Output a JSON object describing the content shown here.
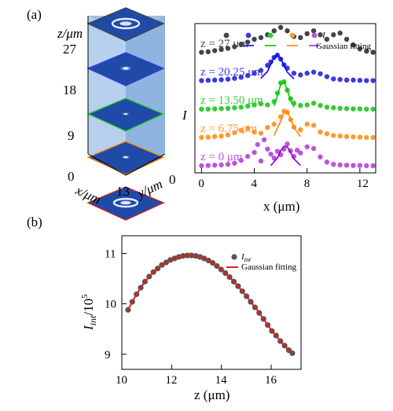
{
  "figure": {
    "panel_a_label": "(a)",
    "panel_b_label": "(b)",
    "stack": {
      "z_axis_label": "z/μm",
      "x_axis_label": "x/μm",
      "y_axis_label": "y/μm",
      "z_ticks": [
        "27",
        "18",
        "9",
        "0"
      ],
      "x_end_tick": "13",
      "y_end_tick": "0",
      "slice_border_colors": [
        "#444444",
        "#3a3ae0",
        "#33cc33",
        "#ff8800",
        "#cc2020"
      ]
    }
  },
  "chart_data": [
    {
      "type": "line",
      "panel": "(a)",
      "title": "",
      "xlabel": "x (μm)",
      "ylabel": "I",
      "xlim": [
        -0.5,
        13.2
      ],
      "xticks": [
        "0",
        "4",
        "8",
        "12"
      ],
      "grid": false,
      "legend": {
        "placement": "top-right",
        "entries": [
          "I",
          "Gaussian fitting"
        ],
        "marker_colors": [
          "#444444",
          "#3a3ae0",
          "#33cc33",
          "#ff9933",
          "#bb55dd"
        ]
      },
      "series": [
        {
          "name": "z = 27 μm",
          "color": "#444444",
          "fit_color": "#444444",
          "offset": 4,
          "x": [
            0,
            0.5,
            1,
            1.5,
            2,
            2.5,
            3,
            3.5,
            4,
            4.5,
            5,
            5.5,
            6,
            6.5,
            7,
            7.5,
            8,
            8.5,
            9,
            9.5,
            10,
            10.5,
            11,
            11.5,
            12,
            12.5,
            13
          ],
          "y": [
            0.04,
            0.06,
            0.1,
            0.14,
            0.18,
            0.24,
            0.32,
            0.4,
            0.5,
            0.56,
            0.66,
            0.8,
            0.92,
            0.8,
            0.6,
            0.56,
            0.7,
            0.8,
            0.66,
            0.5,
            0.66,
            0.72,
            0.5,
            0.3,
            0.16,
            0.08,
            0.04
          ],
          "fit_x": [],
          "fit_y": []
        },
        {
          "name": "z = 20.25 μm",
          "color": "#3a3ae0",
          "fit_color": "#0000ff",
          "offset": 3,
          "x": [
            0,
            0.5,
            1,
            1.5,
            2,
            2.5,
            3,
            3.5,
            4,
            4.5,
            5,
            5.25,
            5.5,
            5.75,
            6,
            6.25,
            6.5,
            7,
            7.5,
            8,
            8.5,
            9,
            9.5,
            10,
            10.5,
            11,
            11.5,
            12,
            12.5,
            13
          ],
          "y": [
            0.04,
            0.05,
            0.06,
            0.07,
            0.09,
            0.12,
            0.16,
            0.22,
            0.3,
            0.4,
            0.58,
            0.7,
            0.86,
            0.94,
            0.8,
            0.6,
            0.48,
            0.3,
            0.24,
            0.3,
            0.34,
            0.28,
            0.18,
            0.1,
            0.08,
            0.06,
            0.06,
            0.05,
            0.04,
            0.04
          ],
          "fit_x": [
            4.5,
            5,
            5.25,
            5.5,
            5.75,
            6,
            6.25,
            6.5,
            7
          ],
          "fit_y": [
            0.12,
            0.36,
            0.62,
            0.86,
            0.94,
            0.82,
            0.58,
            0.34,
            0.1
          ]
        },
        {
          "name": "z = 13.50 μm",
          "color": "#33cc33",
          "fit_color": "#00cc00",
          "offset": 2,
          "x": [
            0,
            0.5,
            1,
            1.5,
            2,
            2.5,
            3,
            3.5,
            4,
            4.5,
            5,
            5.5,
            5.75,
            6,
            6.25,
            6.5,
            6.75,
            7,
            7.5,
            8,
            8.5,
            9,
            9.5,
            10,
            10.5,
            11,
            11.5,
            12,
            12.5,
            13
          ],
          "y": [
            0.03,
            0.03,
            0.04,
            0.05,
            0.06,
            0.08,
            0.1,
            0.14,
            0.18,
            0.22,
            0.18,
            0.3,
            0.6,
            0.96,
            1.0,
            0.7,
            0.4,
            0.24,
            0.16,
            0.18,
            0.24,
            0.16,
            0.1,
            0.08,
            0.06,
            0.05,
            0.04,
            0.04,
            0.03,
            0.03
          ],
          "fit_x": [
            5.5,
            5.75,
            6,
            6.25,
            6.5,
            6.75,
            7
          ],
          "fit_y": [
            0.15,
            0.5,
            0.9,
            1.0,
            0.72,
            0.34,
            0.1
          ]
        },
        {
          "name": "z = 6.75 μm",
          "color": "#ff9933",
          "fit_color": "#ff8800",
          "offset": 1,
          "x": [
            0,
            0.5,
            1,
            1.5,
            2,
            2.5,
            3,
            3.5,
            4,
            4.5,
            5,
            5.5,
            6,
            6.25,
            6.5,
            6.75,
            7,
            7.5,
            8,
            8.5,
            9,
            9.5,
            10,
            10.5,
            11,
            11.5,
            12,
            12.5,
            13
          ],
          "y": [
            0.03,
            0.04,
            0.06,
            0.08,
            0.12,
            0.2,
            0.28,
            0.36,
            0.22,
            0.18,
            0.38,
            0.5,
            0.76,
            0.96,
            0.92,
            0.66,
            0.4,
            0.3,
            0.5,
            0.46,
            0.22,
            0.16,
            0.1,
            0.08,
            0.06,
            0.05,
            0.04,
            0.03,
            0.03
          ],
          "fit_x": [
            5.5,
            6,
            6.25,
            6.5,
            6.75,
            7,
            7.5
          ],
          "fit_y": [
            0.1,
            0.6,
            0.92,
            0.94,
            0.7,
            0.38,
            0.06
          ]
        },
        {
          "name": "z = 0 μm",
          "color": "#bb55dd",
          "fit_color": "#8800cc",
          "offset": 0,
          "x": [
            0,
            0.5,
            1,
            1.5,
            2,
            2.5,
            3,
            3.5,
            4,
            4.25,
            4.5,
            4.75,
            5,
            5.25,
            5.5,
            5.75,
            6,
            6.25,
            6.5,
            6.75,
            7,
            7.25,
            7.5,
            8,
            8.5,
            9,
            9.5,
            10,
            10.5,
            11,
            11.5,
            12,
            12.5,
            13
          ],
          "y": [
            0.03,
            0.04,
            0.05,
            0.06,
            0.08,
            0.12,
            0.22,
            0.36,
            0.5,
            0.78,
            0.2,
            0.95,
            0.62,
            0.44,
            0.3,
            0.54,
            0.42,
            0.62,
            0.8,
            0.56,
            0.36,
            0.58,
            0.48,
            0.7,
            0.64,
            0.34,
            0.16,
            0.08,
            0.06,
            0.05,
            0.04,
            0.04,
            0.03,
            0.03
          ],
          "fit_x": [
            5.25,
            5.75,
            6,
            6.25,
            6.5,
            6.75,
            7,
            7.5
          ],
          "fit_y": [
            0.04,
            0.3,
            0.56,
            0.72,
            0.7,
            0.5,
            0.28,
            0.04
          ]
        }
      ]
    },
    {
      "type": "scatter",
      "panel": "(b)",
      "title": "",
      "xlabel": "z (μm)",
      "ylabel": "I_int/10^5",
      "ylabel_parts": {
        "symbol": "I",
        "subscript": "int",
        "divider": "/10",
        "exponent": "5"
      },
      "xlim": [
        10,
        17.2
      ],
      "ylim": [
        8.7,
        11.35
      ],
      "xticks": [
        10,
        12,
        14,
        16
      ],
      "yticks": [
        9,
        10,
        11
      ],
      "grid": false,
      "legend": {
        "placement": "top-right",
        "entries": [
          "I_int",
          "Gaussian fitting"
        ],
        "entry_parts": {
          "symbol": "I",
          "subscript": "int"
        }
      },
      "series": [
        {
          "name": "I_int",
          "color": "#555555",
          "x": [
            10.25,
            10.42,
            10.59,
            10.76,
            10.93,
            11.1,
            11.27,
            11.44,
            11.61,
            11.78,
            11.95,
            12.12,
            12.29,
            12.46,
            12.63,
            12.8,
            12.97,
            13.14,
            13.31,
            13.48,
            13.65,
            13.82,
            13.99,
            14.16,
            14.33,
            14.5,
            14.67,
            14.84,
            15.01,
            15.18,
            15.35,
            15.52,
            15.69,
            15.86,
            16.03,
            16.2,
            16.37,
            16.54,
            16.71,
            16.85
          ],
          "y": [
            9.88,
            10.04,
            10.19,
            10.32,
            10.44,
            10.54,
            10.63,
            10.7,
            10.77,
            10.82,
            10.87,
            10.9,
            10.93,
            10.95,
            10.96,
            10.96,
            10.95,
            10.93,
            10.9,
            10.86,
            10.81,
            10.75,
            10.68,
            10.61,
            10.53,
            10.44,
            10.35,
            10.25,
            10.15,
            10.04,
            9.93,
            9.82,
            9.7,
            9.58,
            9.46,
            9.37,
            9.26,
            9.17,
            9.08,
            9.02
          ]
        },
        {
          "name": "Gaussian fitting",
          "color": "#dd2020",
          "line": true,
          "x": [
            10.25,
            10.42,
            10.59,
            10.76,
            10.93,
            11.1,
            11.27,
            11.44,
            11.61,
            11.78,
            11.95,
            12.12,
            12.29,
            12.46,
            12.63,
            12.8,
            12.97,
            13.14,
            13.31,
            13.48,
            13.65,
            13.82,
            13.99,
            14.16,
            14.33,
            14.5,
            14.67,
            14.84,
            15.01,
            15.18,
            15.35,
            15.52,
            15.69,
            15.86,
            16.03,
            16.2,
            16.37,
            16.54,
            16.71,
            16.85
          ],
          "y": [
            9.88,
            10.04,
            10.19,
            10.32,
            10.44,
            10.54,
            10.63,
            10.7,
            10.77,
            10.82,
            10.87,
            10.9,
            10.93,
            10.95,
            10.96,
            10.96,
            10.95,
            10.93,
            10.9,
            10.86,
            10.81,
            10.75,
            10.68,
            10.61,
            10.53,
            10.44,
            10.35,
            10.25,
            10.15,
            10.04,
            9.93,
            9.82,
            9.7,
            9.58,
            9.46,
            9.37,
            9.26,
            9.17,
            9.08,
            9.02
          ]
        }
      ]
    }
  ]
}
